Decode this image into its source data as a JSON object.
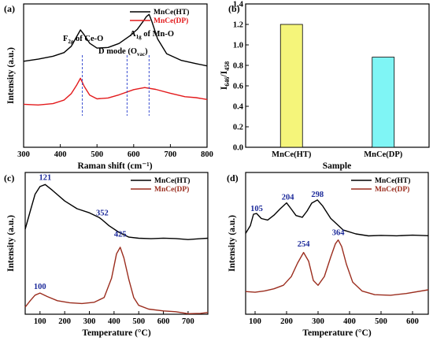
{
  "chart_data": [
    {
      "panel": "(a)",
      "type": "line",
      "xlabel": "Raman shift (cm⁻¹)",
      "ylabel": "Intensity (a.u.)",
      "xlim": [
        300,
        800
      ],
      "xticks": [
        300,
        400,
        500,
        600,
        700,
        800
      ],
      "legend_position": "top-right",
      "annotations": [
        {
          "text": "F2g of Ce-O",
          "x": 460
        },
        {
          "text": "D mode (Ovac)",
          "x": 582
        },
        {
          "text": "A1g of Mn-O",
          "x": 642
        }
      ],
      "series": [
        {
          "name": "MnCe(HT)",
          "color": "#000000",
          "x": [
            300,
            340,
            380,
            410,
            430,
            445,
            455,
            465,
            480,
            500,
            530,
            560,
            590,
            610,
            625,
            635,
            642,
            650,
            665,
            690,
            730,
            770,
            800
          ],
          "y": [
            0.6,
            0.61,
            0.63,
            0.66,
            0.71,
            0.78,
            0.82,
            0.78,
            0.72,
            0.69,
            0.7,
            0.73,
            0.78,
            0.82,
            0.87,
            0.91,
            0.93,
            0.88,
            0.76,
            0.65,
            0.6,
            0.58,
            0.57
          ]
        },
        {
          "name": "MnCe(DP)",
          "color": "#e31a1c",
          "x": [
            300,
            340,
            380,
            410,
            430,
            445,
            455,
            465,
            480,
            500,
            530,
            560,
            600,
            630,
            660,
            700,
            740,
            770,
            800
          ],
          "y": [
            0.3,
            0.3,
            0.31,
            0.33,
            0.37,
            0.43,
            0.48,
            0.43,
            0.37,
            0.34,
            0.34,
            0.36,
            0.4,
            0.42,
            0.41,
            0.38,
            0.35,
            0.34,
            0.33
          ]
        }
      ]
    },
    {
      "panel": "(b)",
      "type": "bar",
      "xlabel": "Sample",
      "ylabel": "I646/I458",
      "ylim": [
        0,
        1.4
      ],
      "yticks": [
        0.0,
        0.2,
        0.4,
        0.6,
        0.8,
        1.0,
        1.2,
        1.4
      ],
      "categories": [
        "MnCe(HT)",
        "MnCe(DP)"
      ],
      "values": [
        1.2,
        0.88
      ],
      "colors": [
        "#f5f57a",
        "#7ff5f5"
      ]
    },
    {
      "panel": "(c)",
      "type": "line",
      "xlabel": "Temperature (°C)",
      "ylabel": "Intensity (a.u.)",
      "xlim": [
        40,
        780
      ],
      "xticks": [
        100,
        200,
        300,
        400,
        500,
        600,
        700
      ],
      "legend_position": "top-right",
      "peaks": [
        {
          "label": "121",
          "x": 121,
          "y": 0.92
        },
        {
          "label": "352",
          "x": 352,
          "y": 0.67
        },
        {
          "label": "425",
          "x": 425,
          "y": 0.52
        },
        {
          "label": "100",
          "x": 100,
          "y": 0.15
        }
      ],
      "series": [
        {
          "name": "MnCe(HT)",
          "color": "#000000",
          "x": [
            40,
            60,
            80,
            100,
            121,
            150,
            200,
            250,
            300,
            340,
            352,
            380,
            420,
            460,
            500,
            550,
            600,
            650,
            700,
            750,
            780
          ],
          "y": [
            0.6,
            0.72,
            0.84,
            0.9,
            0.92,
            0.88,
            0.8,
            0.74,
            0.71,
            0.68,
            0.67,
            0.63,
            0.58,
            0.54,
            0.53,
            0.53,
            0.54,
            0.54,
            0.53,
            0.53,
            0.53
          ]
        },
        {
          "name": "MnCe(DP)",
          "color": "#9b2d1e",
          "x": [
            40,
            60,
            80,
            100,
            130,
            170,
            220,
            270,
            320,
            360,
            390,
            410,
            425,
            440,
            460,
            480,
            500,
            540,
            600,
            650,
            700,
            750,
            780
          ],
          "y": [
            0.05,
            0.1,
            0.14,
            0.15,
            0.12,
            0.09,
            0.08,
            0.08,
            0.09,
            0.12,
            0.25,
            0.42,
            0.47,
            0.4,
            0.25,
            0.12,
            0.06,
            0.03,
            0.02,
            0.02,
            0.01,
            0.01,
            0.01
          ]
        }
      ]
    },
    {
      "panel": "(d)",
      "type": "line",
      "xlabel": "Temperature (°C)",
      "ylabel": "Intensity (a.u.)",
      "xlim": [
        70,
        650
      ],
      "xticks": [
        100,
        200,
        300,
        400,
        500,
        600
      ],
      "legend_position": "top-right",
      "peaks": [
        {
          "label": "105",
          "x": 105,
          "y": 0.7
        },
        {
          "label": "204",
          "x": 204,
          "y": 0.78
        },
        {
          "label": "298",
          "x": 298,
          "y": 0.8
        },
        {
          "label": "254",
          "x": 254,
          "y": 0.45
        },
        {
          "label": "364",
          "x": 364,
          "y": 0.53
        }
      ],
      "series": [
        {
          "name": "MnCe(HT)",
          "color": "#000000",
          "x": [
            70,
            85,
            95,
            105,
            120,
            140,
            160,
            180,
            200,
            215,
            230,
            250,
            265,
            280,
            298,
            315,
            340,
            380,
            420,
            460,
            500,
            550,
            600,
            650
          ],
          "y": [
            0.57,
            0.62,
            0.7,
            0.71,
            0.68,
            0.67,
            0.7,
            0.74,
            0.78,
            0.74,
            0.7,
            0.69,
            0.73,
            0.78,
            0.8,
            0.76,
            0.68,
            0.6,
            0.57,
            0.55,
            0.55,
            0.55,
            0.56,
            0.56
          ]
        },
        {
          "name": "MnCe(DP)",
          "color": "#9b2d1e",
          "x": [
            70,
            100,
            130,
            160,
            190,
            215,
            235,
            254,
            270,
            285,
            300,
            320,
            340,
            355,
            364,
            375,
            390,
            410,
            440,
            480,
            530,
            580,
            650
          ],
          "y": [
            0.16,
            0.16,
            0.17,
            0.18,
            0.2,
            0.26,
            0.36,
            0.44,
            0.38,
            0.24,
            0.2,
            0.26,
            0.4,
            0.5,
            0.53,
            0.48,
            0.35,
            0.22,
            0.16,
            0.14,
            0.14,
            0.15,
            0.17
          ]
        }
      ]
    }
  ]
}
